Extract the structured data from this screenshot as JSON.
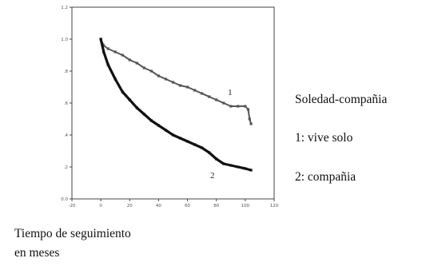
{
  "chart_data": {
    "type": "line",
    "title": "",
    "xlabel": "Tiempo de seguimiento",
    "xlabel_line2": "en meses",
    "ylabel": "",
    "xlim": [
      -20,
      120
    ],
    "ylim": [
      0,
      1.2
    ],
    "x_ticks": [
      -20,
      0,
      20,
      40,
      60,
      80,
      100,
      120
    ],
    "y_ticks": [
      0.0,
      0.2,
      0.4,
      0.6,
      0.8,
      1.0,
      1.2
    ],
    "x_tick_labels": [
      "-20",
      "0",
      "20",
      "40",
      "60",
      "80",
      "100",
      "120"
    ],
    "y_tick_labels": [
      "0.0",
      ".2",
      ".4",
      ".6",
      ".8",
      "1.0",
      "1.2"
    ],
    "legend_title": "Soledad-compañia",
    "legend_entries": [
      "1: vive solo",
      "2: compañia"
    ],
    "series": [
      {
        "name": "1",
        "color": "#555555",
        "x": [
          0,
          2,
          5,
          10,
          15,
          20,
          25,
          30,
          35,
          40,
          45,
          50,
          55,
          60,
          65,
          70,
          75,
          80,
          85,
          90,
          95,
          100,
          102,
          103,
          104
        ],
        "y": [
          1.0,
          0.96,
          0.94,
          0.92,
          0.9,
          0.87,
          0.85,
          0.82,
          0.8,
          0.77,
          0.75,
          0.73,
          0.71,
          0.7,
          0.68,
          0.66,
          0.64,
          0.62,
          0.6,
          0.58,
          0.58,
          0.58,
          0.56,
          0.5,
          0.47
        ]
      },
      {
        "name": "2",
        "color": "#111111",
        "x": [
          0,
          2,
          5,
          10,
          15,
          20,
          25,
          30,
          35,
          40,
          45,
          50,
          55,
          60,
          65,
          70,
          75,
          80,
          85,
          90,
          95,
          100,
          104
        ],
        "y": [
          1.0,
          0.92,
          0.84,
          0.75,
          0.67,
          0.62,
          0.57,
          0.53,
          0.49,
          0.46,
          0.43,
          0.4,
          0.38,
          0.36,
          0.34,
          0.32,
          0.29,
          0.25,
          0.22,
          0.21,
          0.2,
          0.19,
          0.18
        ]
      }
    ]
  }
}
